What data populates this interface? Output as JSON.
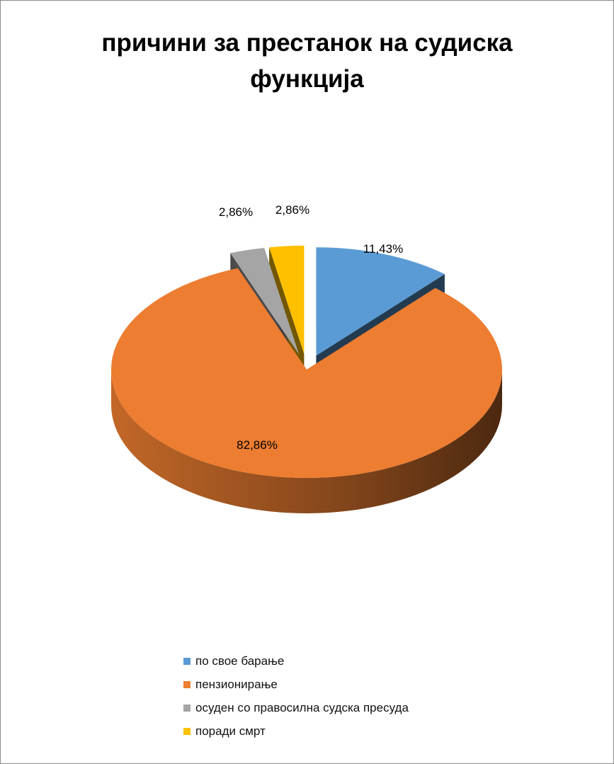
{
  "chart_data": {
    "type": "pie",
    "title": "причини за престанок на судиска функција",
    "categories": [
      "по свое барање",
      "пензионирање",
      "осуден со правосилна судска пресуда",
      "поради смрт"
    ],
    "values": [
      11.43,
      82.86,
      2.86,
      2.86
    ],
    "data_labels": [
      "11,43%",
      "82,86%",
      "2,86%",
      "2,86%"
    ],
    "colors": [
      "#5b9bd5",
      "#ed7d31",
      "#a5a5a5",
      "#ffc000"
    ],
    "exploded": true,
    "style": "3d",
    "legend_position": "bottom"
  }
}
